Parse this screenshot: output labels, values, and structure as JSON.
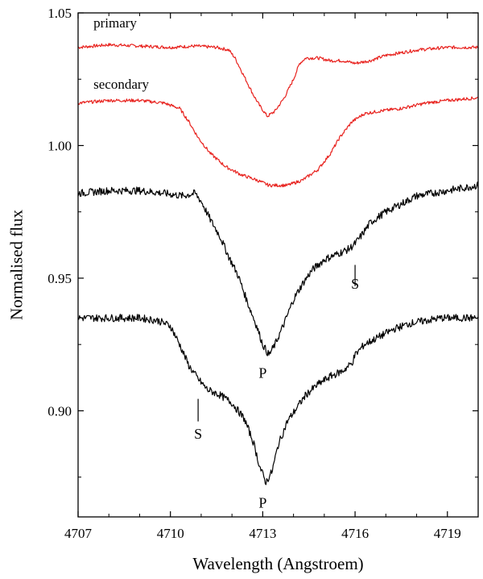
{
  "chart_data": {
    "type": "line",
    "xlabel": "Wavelength (Angstroem)",
    "ylabel": "Normalised flux",
    "xlim": [
      4707,
      4720
    ],
    "ylim": [
      0.86,
      1.05
    ],
    "x_ticks": [
      4707,
      4710,
      4713,
      4716,
      4719
    ],
    "x_tick_labels": [
      "4707",
      "4710",
      "4713",
      "4716",
      "4719"
    ],
    "y_ticks": [
      0.9,
      0.95,
      1.0,
      1.05
    ],
    "y_tick_labels": [
      "0.90",
      "0.95",
      "1.00",
      "1.05"
    ],
    "grid": false,
    "legend": "none",
    "series": [
      {
        "name": "primary",
        "color": "#e8231f",
        "points": [
          [
            4707.0,
            1.037
          ],
          [
            4708.0,
            1.038
          ],
          [
            4709.0,
            1.0375
          ],
          [
            4710.0,
            1.037
          ],
          [
            4710.8,
            1.0375
          ],
          [
            4711.5,
            1.037
          ],
          [
            4711.9,
            1.036
          ],
          [
            4712.1,
            1.033
          ],
          [
            4712.4,
            1.026
          ],
          [
            4712.7,
            1.019
          ],
          [
            4712.9,
            1.015
          ],
          [
            4713.15,
            1.011
          ],
          [
            4713.4,
            1.013
          ],
          [
            4713.7,
            1.018
          ],
          [
            4714.0,
            1.025
          ],
          [
            4714.2,
            1.031
          ],
          [
            4714.4,
            1.033
          ],
          [
            4714.8,
            1.033
          ],
          [
            4715.2,
            1.032
          ],
          [
            4715.6,
            1.032
          ],
          [
            4716.0,
            1.031
          ],
          [
            4716.5,
            1.032
          ],
          [
            4717.0,
            1.034
          ],
          [
            4718.0,
            1.036
          ],
          [
            4719.0,
            1.037
          ],
          [
            4720.0,
            1.037
          ]
        ]
      },
      {
        "name": "secondary",
        "color": "#e8231f",
        "points": [
          [
            4707.0,
            1.016
          ],
          [
            4708.0,
            1.017
          ],
          [
            4709.0,
            1.017
          ],
          [
            4709.8,
            1.016
          ],
          [
            4710.3,
            1.014
          ],
          [
            4710.6,
            1.009
          ],
          [
            4710.9,
            1.003
          ],
          [
            4711.3,
            0.997
          ],
          [
            4711.8,
            0.992
          ],
          [
            4712.3,
            0.989
          ],
          [
            4712.8,
            0.987
          ],
          [
            4713.2,
            0.985
          ],
          [
            4713.8,
            0.985
          ],
          [
            4714.3,
            0.987
          ],
          [
            4714.8,
            0.991
          ],
          [
            4715.2,
            0.997
          ],
          [
            4715.5,
            1.003
          ],
          [
            4715.9,
            1.009
          ],
          [
            4716.3,
            1.012
          ],
          [
            4716.8,
            1.013
          ],
          [
            4717.5,
            1.014
          ],
          [
            4718.3,
            1.016
          ],
          [
            4719.0,
            1.017
          ],
          [
            4720.0,
            1.018
          ]
        ]
      },
      {
        "name": "",
        "color": "#000000",
        "points": [
          [
            4707.0,
            0.982
          ],
          [
            4708.0,
            0.983
          ],
          [
            4709.0,
            0.983
          ],
          [
            4709.8,
            0.982
          ],
          [
            4710.4,
            0.981
          ],
          [
            4710.8,
            0.982
          ],
          [
            4711.0,
            0.979
          ],
          [
            4711.3,
            0.972
          ],
          [
            4711.6,
            0.966
          ],
          [
            4711.9,
            0.958
          ],
          [
            4712.2,
            0.951
          ],
          [
            4712.5,
            0.941
          ],
          [
            4712.8,
            0.932
          ],
          [
            4713.0,
            0.925
          ],
          [
            4713.2,
            0.921
          ],
          [
            4713.4,
            0.925
          ],
          [
            4713.7,
            0.933
          ],
          [
            4714.0,
            0.942
          ],
          [
            4714.3,
            0.948
          ],
          [
            4714.6,
            0.953
          ],
          [
            4715.0,
            0.957
          ],
          [
            4715.4,
            0.959
          ],
          [
            4715.8,
            0.961
          ],
          [
            4716.0,
            0.963
          ],
          [
            4716.2,
            0.966
          ],
          [
            4716.5,
            0.971
          ],
          [
            4717.0,
            0.975
          ],
          [
            4717.5,
            0.978
          ],
          [
            4718.0,
            0.981
          ],
          [
            4718.5,
            0.982
          ],
          [
            4719.0,
            0.983
          ],
          [
            4719.5,
            0.984
          ],
          [
            4720.0,
            0.985
          ]
        ]
      },
      {
        "name": "",
        "color": "#000000",
        "points": [
          [
            4707.0,
            0.935
          ],
          [
            4708.0,
            0.935
          ],
          [
            4709.0,
            0.935
          ],
          [
            4709.6,
            0.934
          ],
          [
            4710.0,
            0.932
          ],
          [
            4710.3,
            0.925
          ],
          [
            4710.6,
            0.917
          ],
          [
            4710.9,
            0.912
          ],
          [
            4711.2,
            0.908
          ],
          [
            4711.6,
            0.906
          ],
          [
            4712.0,
            0.903
          ],
          [
            4712.4,
            0.897
          ],
          [
            4712.7,
            0.888
          ],
          [
            4712.9,
            0.879
          ],
          [
            4713.1,
            0.873
          ],
          [
            4713.3,
            0.877
          ],
          [
            4713.5,
            0.887
          ],
          [
            4713.8,
            0.896
          ],
          [
            4714.1,
            0.901
          ],
          [
            4714.4,
            0.906
          ],
          [
            4714.8,
            0.91
          ],
          [
            4715.2,
            0.913
          ],
          [
            4715.6,
            0.915
          ],
          [
            4715.9,
            0.918
          ],
          [
            4716.0,
            0.921
          ],
          [
            4716.3,
            0.925
          ],
          [
            4716.8,
            0.928
          ],
          [
            4717.3,
            0.931
          ],
          [
            4717.8,
            0.933
          ],
          [
            4718.3,
            0.934
          ],
          [
            4718.8,
            0.935
          ],
          [
            4719.3,
            0.935
          ],
          [
            4720.0,
            0.935
          ]
        ]
      }
    ],
    "annotations": [
      {
        "text": "primary",
        "x": 4707.5,
        "y": 1.0445,
        "kind": "label"
      },
      {
        "text": "secondary",
        "x": 4707.5,
        "y": 1.0215,
        "kind": "label"
      },
      {
        "text": "S",
        "x": 4716.0,
        "y": 0.946,
        "kind": "marker",
        "tick": [
          0.955,
          0.947
        ]
      },
      {
        "text": "P",
        "x": 4713.0,
        "y": 0.9125,
        "kind": "marker"
      },
      {
        "text": "S",
        "x": 4710.9,
        "y": 0.8895,
        "kind": "marker",
        "tick": [
          0.9045,
          0.896
        ]
      },
      {
        "text": "P",
        "x": 4713.0,
        "y": 0.8635,
        "kind": "marker"
      }
    ]
  }
}
